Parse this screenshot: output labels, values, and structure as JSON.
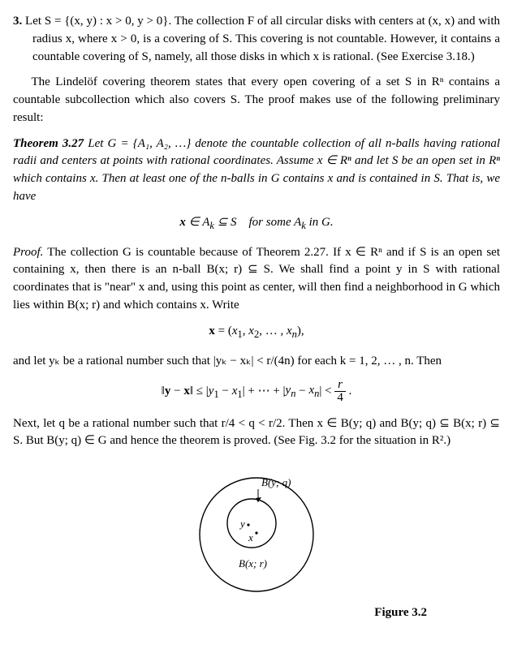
{
  "example": {
    "num": "3.",
    "text": "Let S = {(x, y) : x > 0, y > 0}. The collection F of all circular disks with centers at (x, x) and with radius x, where x > 0, is a covering of S. This covering is not countable. However, it contains a countable covering of S, namely, all those disks in which x is rational. (See Exercise 3.18.)"
  },
  "intro": "The Lindelöf covering theorem states that every open covering of a set S in Rⁿ contains a countable subcollection which also covers S. The proof makes use of the following preliminary result:",
  "theorem": {
    "head": "Theorem 3.27",
    "body": "Let G = {A₁, A₂, …} denote the countable collection of all n-balls having rational radii and centers at points with rational coordinates. Assume x ∈ Rⁿ and let S be an open set in Rⁿ which contains x. Then at least one of the n-balls in G contains x and is contained in S. That is, we have",
    "formula": "x ∈ Aₖ ⊆ S for some Aₖ in G."
  },
  "proof": {
    "head": "Proof.",
    "p1": "The collection G is countable because of Theorem 2.27. If x ∈ Rⁿ and if S is an open set containing x, then there is an n-ball B(x; r) ⊆ S. We shall find a point y in S with rational coordinates that is \"near\" x and, using this point as center, will then find a neighborhood in G which lies within B(x; r) and which contains x. Write",
    "f1": "x = (x₁, x₂, … , xₙ),",
    "p2": "and let yₖ be a rational number such that |yₖ − xₖ| < r/(4n) for each k = 1, 2, … , n. Then",
    "f2": "‖y − x‖ ≤ |y₁ − x₁| + ⋯ + |yₙ − xₙ| < r⁄4 .",
    "p3": "Next, let q be a rational number such that r/4 < q < r/2. Then x ∈ B(y; q) and B(y; q) ⊆ B(x; r) ⊆ S. But B(y; q) ∈ G and hence the theorem is proved. (See Fig. 3.2 for the situation in R².)"
  },
  "figure": {
    "outer_label": "B(x; r)",
    "inner_label": "B(y; q)",
    "y_label": "y",
    "x_label": "x",
    "caption": "Figure 3.2",
    "style": {
      "outer_r": 70,
      "inner_r": 30,
      "stroke": "#000",
      "stroke_width": 1.4,
      "font_size": 13,
      "font_family": "Georgia, serif"
    }
  }
}
